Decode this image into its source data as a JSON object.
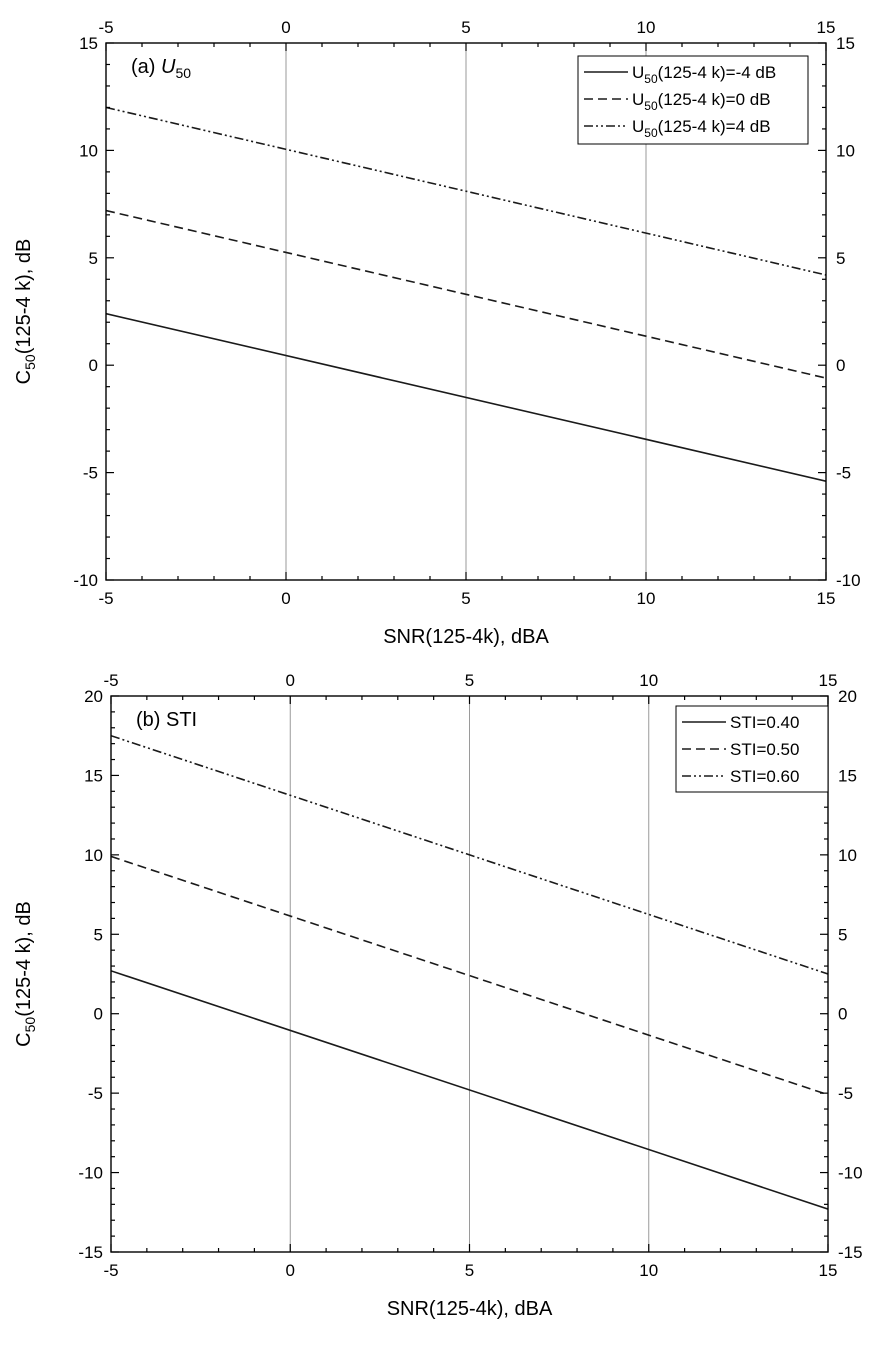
{
  "chart_data": [
    {
      "type": "line",
      "panel_label": "(a) ",
      "panel_label_italic": "U",
      "panel_label_sub": "50",
      "xlabel": "SNR(125-4k), dBA",
      "ylabel_prefix": "C",
      "ylabel_sub": "50",
      "ylabel_suffix": "(125-4 k), dB",
      "xlim": [
        -5,
        15
      ],
      "ylim": [
        -10,
        15
      ],
      "x_ticks": [
        -5,
        0,
        5,
        10,
        15
      ],
      "y_ticks": [
        -10,
        -5,
        0,
        5,
        10,
        15
      ],
      "x_tick_labels": [
        "-5",
        "0",
        "5",
        "10",
        "15"
      ],
      "y_tick_labels": [
        "-10",
        "-5",
        "0",
        "5",
        "10",
        "15"
      ],
      "vertical_gridlines_at": [
        0,
        5,
        10
      ],
      "mirror_axes": true,
      "legend_position": "top-right",
      "series": [
        {
          "legend_prefix": "U",
          "legend_sub": "50",
          "legend_suffix": "(125-4 k)=-4 dB",
          "style": "solid",
          "x": [
            -5,
            15
          ],
          "y": [
            2.4,
            -5.4
          ]
        },
        {
          "legend_prefix": "U",
          "legend_sub": "50",
          "legend_suffix": "(125-4 k)=0 dB",
          "style": "dashed",
          "x": [
            -5,
            15
          ],
          "y": [
            7.2,
            -0.6
          ]
        },
        {
          "legend_prefix": "U",
          "legend_sub": "50",
          "legend_suffix": "(125-4 k)=4 dB",
          "style": "dashdotdot",
          "x": [
            -5,
            15
          ],
          "y": [
            12.0,
            4.2
          ]
        }
      ]
    },
    {
      "type": "line",
      "panel_label": "(b) STI",
      "xlabel": "SNR(125-4k), dBA",
      "ylabel_prefix": "C",
      "ylabel_sub": "50",
      "ylabel_suffix": "(125-4 k), dB",
      "xlim": [
        -5,
        15
      ],
      "ylim": [
        -15,
        20
      ],
      "x_ticks": [
        -5,
        0,
        5,
        10,
        15
      ],
      "y_ticks": [
        -15,
        -10,
        -5,
        0,
        5,
        10,
        15,
        20
      ],
      "x_tick_labels": [
        "-5",
        "0",
        "5",
        "10",
        "15"
      ],
      "y_tick_labels": [
        "-15",
        "-10",
        "-5",
        "0",
        "5",
        "10",
        "15",
        "20"
      ],
      "vertical_gridlines_at": [
        0,
        5,
        10
      ],
      "mirror_axes": true,
      "legend_position": "top-right",
      "series": [
        {
          "legend_prefix": "STI=0.40",
          "legend_sub": "",
          "legend_suffix": "",
          "style": "solid",
          "x": [
            -5,
            15
          ],
          "y": [
            2.7,
            -12.3
          ]
        },
        {
          "legend_prefix": "STI=0.50",
          "legend_sub": "",
          "legend_suffix": "",
          "style": "dashed",
          "x": [
            -5,
            15
          ],
          "y": [
            9.9,
            -5.1
          ]
        },
        {
          "legend_prefix": "STI=0.60",
          "legend_sub": "",
          "legend_suffix": "",
          "style": "dashdotdot",
          "x": [
            -5,
            15
          ],
          "y": [
            17.5,
            2.5
          ]
        }
      ]
    }
  ]
}
